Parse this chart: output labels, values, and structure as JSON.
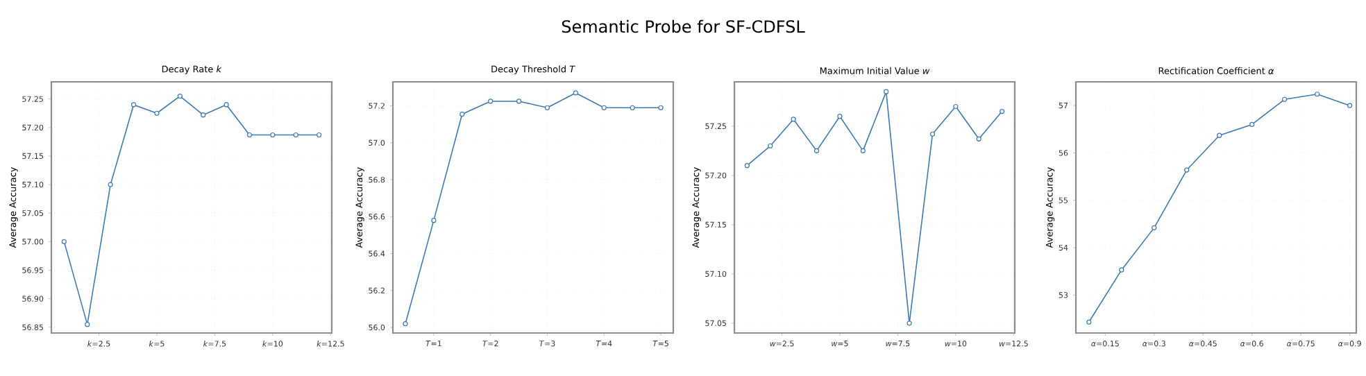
{
  "chart_data": [
    {
      "type": "line",
      "title": "Decay Rate *k*",
      "ylabel": "Average Accuracy",
      "annotations": [
        "Semantic Probe for SF-CDFSL"
      ],
      "marker": "circle",
      "grid": true,
      "x": [
        1,
        2,
        3,
        4,
        5,
        6,
        7,
        8,
        9,
        10,
        11,
        12
      ],
      "series": [
        {
          "color": "#3d7ab5",
          "values": [
            57.0,
            56.855,
            57.1,
            57.24,
            57.225,
            57.255,
            57.222,
            57.24,
            57.187,
            57.187,
            57.187,
            57.187
          ]
        }
      ],
      "xlim": [
        0.45,
        12.55
      ],
      "ylim": [
        56.84,
        57.28
      ],
      "xticks": [
        {
          "value": 2.5,
          "label": "*k*=2.5"
        },
        {
          "value": 5,
          "label": "*k*=5"
        },
        {
          "value": 7.5,
          "label": "*k*=7.5"
        },
        {
          "value": 10,
          "label": "*k*=10"
        },
        {
          "value": 12.5,
          "label": "*k*=12.5"
        }
      ],
      "yticks": [
        {
          "value": 56.85,
          "label": "56.85"
        },
        {
          "value": 56.9,
          "label": "56.90"
        },
        {
          "value": 56.95,
          "label": "56.95"
        },
        {
          "value": 57.0,
          "label": "57.00"
        },
        {
          "value": 57.05,
          "label": "57.05"
        },
        {
          "value": 57.1,
          "label": "57.10"
        },
        {
          "value": 57.15,
          "label": "57.15"
        },
        {
          "value": 57.2,
          "label": "57.20"
        },
        {
          "value": 57.25,
          "label": "57.25"
        }
      ]
    },
    {
      "type": "line",
      "title": "Decay Threshold *T*",
      "ylabel": "Average Accuracy",
      "marker": "circle",
      "grid": true,
      "x": [
        0.5,
        1,
        1.5,
        2,
        2.5,
        3,
        3.5,
        4,
        4.5,
        5
      ],
      "series": [
        {
          "color": "#3d7ab5",
          "values": [
            56.02,
            56.58,
            57.155,
            57.225,
            57.225,
            57.19,
            57.27,
            57.19,
            57.19,
            57.19
          ]
        }
      ],
      "xlim": [
        0.28,
        5.22
      ],
      "ylim": [
        55.97,
        57.33
      ],
      "xticks": [
        {
          "value": 1,
          "label": "*T*=1"
        },
        {
          "value": 2,
          "label": "*T*=2"
        },
        {
          "value": 3,
          "label": "*T*=3"
        },
        {
          "value": 4,
          "label": "*T*=4"
        },
        {
          "value": 5,
          "label": "*T*=5"
        }
      ],
      "yticks": [
        {
          "value": 56.0,
          "label": "56.0"
        },
        {
          "value": 56.2,
          "label": "56.2"
        },
        {
          "value": 56.4,
          "label": "56.4"
        },
        {
          "value": 56.6,
          "label": "56.6"
        },
        {
          "value": 56.8,
          "label": "56.8"
        },
        {
          "value": 57.0,
          "label": "57.0"
        },
        {
          "value": 57.2,
          "label": "57.2"
        }
      ]
    },
    {
      "type": "line",
      "title": "Maximum Initial Value *w*",
      "ylabel": "Average Accuracy",
      "marker": "circle",
      "grid": true,
      "x": [
        1,
        2,
        3,
        4,
        5,
        6,
        7,
        8,
        9,
        10,
        11,
        12
      ],
      "series": [
        {
          "color": "#3d7ab5",
          "values": [
            57.21,
            57.23,
            57.257,
            57.225,
            57.26,
            57.225,
            57.285,
            57.05,
            57.242,
            57.27,
            57.237,
            57.265
          ]
        }
      ],
      "xlim": [
        0.45,
        12.55
      ],
      "ylim": [
        57.04,
        57.295
      ],
      "xticks": [
        {
          "value": 2.5,
          "label": "*w*=2.5"
        },
        {
          "value": 5,
          "label": "*w*=5"
        },
        {
          "value": 7.5,
          "label": "*w*=7.5"
        },
        {
          "value": 10,
          "label": "*w*=10"
        },
        {
          "value": 12.5,
          "label": "*w*=12.5"
        }
      ],
      "yticks": [
        {
          "value": 57.05,
          "label": "57.05"
        },
        {
          "value": 57.1,
          "label": "57.10"
        },
        {
          "value": 57.15,
          "label": "57.15"
        },
        {
          "value": 57.2,
          "label": "57.20"
        },
        {
          "value": 57.25,
          "label": "57.25"
        }
      ]
    },
    {
      "type": "line",
      "title": "Rectification Coefficient  *α*",
      "ylabel": "Average Accuracy",
      "marker": "circle",
      "grid": true,
      "x": [
        0.1,
        0.2,
        0.3,
        0.4,
        0.5,
        0.6,
        0.7,
        0.8,
        0.9
      ],
      "series": [
        {
          "color": "#3d7ab5",
          "values": [
            52.43,
            53.53,
            54.42,
            55.64,
            56.37,
            56.6,
            57.13,
            57.24,
            57.0
          ]
        }
      ],
      "xlim": [
        0.06,
        0.92
      ],
      "ylim": [
        52.2,
        57.5
      ],
      "xticks": [
        {
          "value": 0.15,
          "label": "*α*=0.15"
        },
        {
          "value": 0.3,
          "label": "*α*=0.3"
        },
        {
          "value": 0.45,
          "label": "*α*=0.45"
        },
        {
          "value": 0.6,
          "label": "*α*=0.6"
        },
        {
          "value": 0.75,
          "label": "*α*=0.75"
        },
        {
          "value": 0.9,
          "label": "*α*=0.9"
        }
      ],
      "yticks": [
        53,
        54,
        55,
        56,
        57
      ]
    }
  ]
}
